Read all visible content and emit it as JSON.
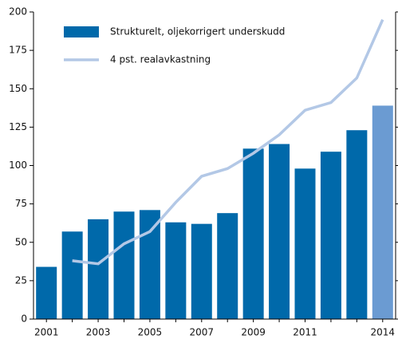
{
  "chart_data": {
    "type": "bar",
    "categories": [
      "2001",
      null,
      "2003",
      null,
      "2005",
      null,
      "2007",
      null,
      "2009",
      null,
      "2011",
      null,
      null,
      "2014"
    ],
    "series": [
      {
        "name": "Strukturelt, oljekorrigert underskudd",
        "type": "bar",
        "color": "#0069aa",
        "colors": [
          "#0069aa",
          "#0069aa",
          "#0069aa",
          "#0069aa",
          "#0069aa",
          "#0069aa",
          "#0069aa",
          "#0069aa",
          "#0069aa",
          "#0069aa",
          "#0069aa",
          "#0069aa",
          "#0069aa",
          "#6b9bd2"
        ],
        "values": [
          34,
          57,
          65,
          70,
          71,
          63,
          62,
          69,
          111,
          114,
          98,
          109,
          123,
          139
        ]
      },
      {
        "name": "4 pst. realavkastning",
        "type": "line",
        "color": "#b3c8e6",
        "values": [
          null,
          38,
          36,
          49,
          57,
          76,
          93,
          98,
          108,
          120,
          136,
          141,
          157,
          195
        ]
      }
    ],
    "ylim": [
      0,
      200
    ],
    "yticks": [
      0,
      25,
      50,
      75,
      100,
      125,
      150,
      175,
      200
    ]
  }
}
